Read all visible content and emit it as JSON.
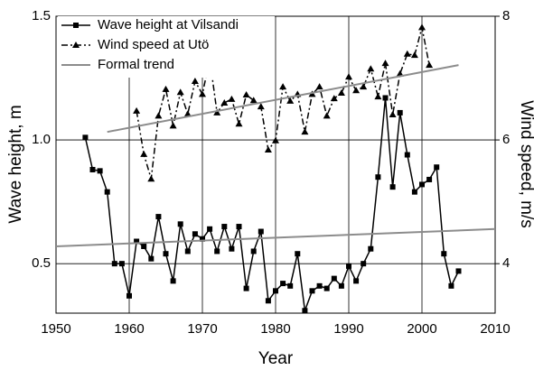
{
  "chart_data": {
    "type": "line",
    "xlabel": "Year",
    "ylabel": "Wave height, m",
    "y2label": "Wind speed, m/s",
    "xlim": [
      1950,
      2010
    ],
    "xticks": [
      1950,
      1960,
      1970,
      1980,
      1990,
      2000,
      2010
    ],
    "ylim": [
      0.3,
      1.5
    ],
    "yticks": [
      0.5,
      {
        "value": 1.0,
        "label": "1.0"
      },
      1.5
    ],
    "y2lim": [
      3.2,
      8
    ],
    "y2ticks": [
      4,
      6,
      8
    ],
    "grid": true,
    "legend": "upper left",
    "series": [
      {
        "name": "Wave height at Vilsandi",
        "color": "#000000",
        "marker": "square",
        "line_style": "solid",
        "x": [
          1954,
          1955,
          1956,
          1957,
          1958,
          1959,
          1960,
          1961,
          1962,
          1963,
          1964,
          1965,
          1966,
          1967,
          1968,
          1969,
          1970,
          1971,
          1972,
          1973,
          1974,
          1975,
          1976,
          1977,
          1978,
          1979,
          1980,
          1981,
          1982,
          1983,
          1984,
          1985,
          1986,
          1987,
          1988,
          1989,
          1990,
          1991,
          1992,
          1993,
          1994,
          1995,
          1996,
          1997,
          1998,
          1999,
          2000,
          2001,
          2002,
          2003,
          2004,
          2005
        ],
        "values": [
          1.01,
          0.88,
          0.875,
          0.79,
          0.5,
          0.5,
          0.37,
          0.59,
          0.57,
          0.52,
          0.69,
          0.54,
          0.43,
          0.66,
          0.55,
          0.62,
          0.6,
          0.64,
          0.55,
          0.65,
          0.56,
          0.65,
          0.4,
          0.55,
          0.63,
          0.35,
          0.39,
          0.42,
          0.41,
          0.54,
          0.31,
          0.39,
          0.41,
          0.4,
          0.44,
          0.41,
          0.49,
          0.43,
          0.5,
          0.56,
          0.85,
          1.17,
          0.81,
          1.11,
          0.94,
          0.79,
          0.82,
          0.84,
          0.89,
          0.54,
          0.41,
          0.47
        ]
      },
      {
        "name": "Wind speed at Utö",
        "color": "#000000",
        "marker": "triangle",
        "line_style": "dashdot",
        "axis": "y2",
        "x": [
          1961,
          1962,
          1963,
          1964,
          1965,
          1966,
          1967,
          1968,
          1969,
          1970,
          1971,
          1972,
          1973,
          1974,
          1975,
          1976,
          1977,
          1978,
          1979,
          1980,
          1981,
          1982,
          1983,
          1984,
          1985,
          1986,
          1987,
          1988,
          1989,
          1990,
          1991,
          1992,
          1993,
          1994,
          1995,
          1996,
          1997,
          1998,
          1999,
          2000,
          2001
        ],
        "values": [
          6.47,
          5.77,
          5.37,
          6.39,
          6.82,
          6.23,
          6.77,
          6.42,
          6.95,
          6.74,
          7.31,
          6.44,
          6.6,
          6.66,
          6.26,
          6.73,
          6.64,
          6.54,
          5.84,
          5.99,
          6.86,
          6.63,
          6.74,
          6.13,
          6.74,
          6.86,
          6.39,
          6.67,
          6.76,
          7.02,
          6.8,
          6.86,
          7.15,
          6.7,
          7.24,
          6.41,
          7.07,
          7.39,
          7.37,
          7.82,
          7.21
        ]
      },
      {
        "name": "Formal trend",
        "color": "#8c8c8c",
        "line_style": "solid",
        "segments": [
          {
            "x": [
              1950,
              2010
            ],
            "values": [
              0.57,
              0.64
            ]
          },
          {
            "x": [
              1957,
              2005
            ],
            "values": [
              6.13,
              7.21
            ],
            "axis": "y2"
          }
        ]
      }
    ]
  }
}
